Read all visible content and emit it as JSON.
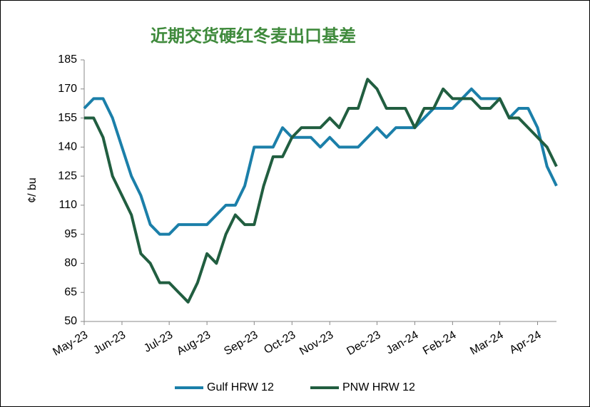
{
  "chart_data": {
    "type": "line",
    "title": "近期交货硬红冬麦出口基差",
    "y_label": "¢/ bu",
    "categories": [
      "May-23",
      null,
      null,
      null,
      "Jun-23",
      null,
      null,
      null,
      null,
      "Jul-23",
      null,
      null,
      null,
      "Aug-23",
      null,
      null,
      null,
      null,
      "Sep-23",
      null,
      null,
      null,
      "Oct-23",
      null,
      null,
      null,
      "Nov-23",
      null,
      null,
      null,
      null,
      "Dec-23",
      null,
      null,
      null,
      "Jan-24",
      null,
      null,
      null,
      "Feb-24",
      null,
      null,
      null,
      null,
      "Mar-24",
      null,
      null,
      null,
      "Apr-24",
      null,
      null
    ],
    "series": [
      {
        "name": "Gulf HRW 12",
        "color": "#1b7fa9",
        "values": [
          160,
          165,
          165,
          155,
          140,
          125,
          115,
          100,
          95,
          95,
          100,
          100,
          100,
          100,
          105,
          110,
          110,
          120,
          140,
          140,
          140,
          150,
          145,
          145,
          145,
          140,
          145,
          140,
          140,
          140,
          145,
          150,
          145,
          150,
          150,
          150,
          155,
          160,
          160,
          160,
          165,
          170,
          165,
          165,
          165,
          155,
          160,
          160,
          150,
          130,
          120
        ]
      },
      {
        "name": "PNW HRW 12",
        "color": "#215e40",
        "values": [
          155,
          155,
          145,
          125,
          115,
          105,
          85,
          80,
          70,
          70,
          65,
          60,
          70,
          85,
          80,
          95,
          105,
          100,
          100,
          120,
          135,
          135,
          145,
          150,
          150,
          150,
          155,
          150,
          160,
          160,
          175,
          170,
          160,
          160,
          160,
          150,
          160,
          160,
          170,
          165,
          165,
          165,
          160,
          160,
          165,
          155,
          155,
          150,
          145,
          140,
          130
        ]
      }
    ],
    "ylim": [
      50,
      185
    ],
    "yticks": [
      50,
      65,
      80,
      95,
      110,
      125,
      140,
      155,
      170,
      185
    ],
    "grid": false
  }
}
